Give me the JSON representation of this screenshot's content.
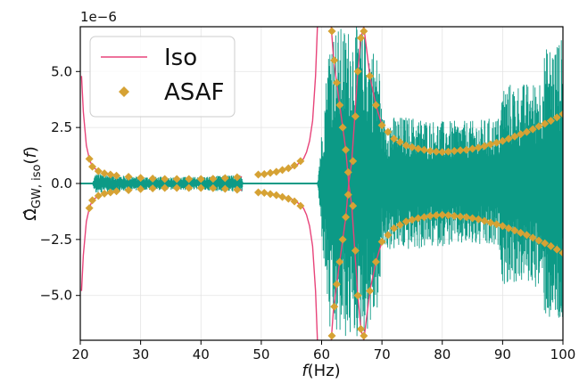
{
  "chart_data": {
    "type": "line",
    "xlabel": "f(Hz)",
    "ylabel": "Ω̂GW,iso(f)",
    "y_scale_label": "1e−6",
    "xlim": [
      20,
      100
    ],
    "ylim": [
      -7.0,
      7.0
    ],
    "x_ticks": [
      20,
      30,
      40,
      50,
      60,
      70,
      80,
      90,
      100
    ],
    "y_ticks": [
      -5.0,
      -2.5,
      0.0,
      2.5,
      5.0
    ],
    "y_tick_labels": [
      "−5.0",
      "−2.5",
      "0.0",
      "2.5",
      "5.0"
    ],
    "grid": true,
    "legend_position": "top-left",
    "colors": {
      "teal": "#0c9a86",
      "pink": "#e8447a",
      "gold": "#d6a234"
    },
    "series": [
      {
        "name": "Iso",
        "style": "line",
        "color": "#e8447a",
        "upper": {
          "x": [
            20.2,
            20.5,
            21,
            21.5,
            22,
            23,
            25,
            28,
            30,
            33,
            36,
            40,
            43,
            46,
            46.8,
            49.5,
            51,
            53,
            55,
            56,
            57,
            57.5,
            58,
            58.5,
            59,
            59.3,
            61.6,
            62,
            62.5,
            63,
            63.5,
            64,
            64.5,
            65,
            65.5,
            66,
            66.5,
            67,
            68,
            69,
            70,
            72,
            74,
            76,
            78,
            80,
            82,
            84,
            86,
            88,
            90,
            92,
            94,
            96,
            98,
            100
          ],
          "y": [
            4.8,
            3.2,
            1.7,
            1.1,
            0.75,
            0.55,
            0.4,
            0.3,
            0.25,
            0.2,
            0.2,
            0.2,
            0.22,
            0.28,
            0.3,
            0.4,
            0.45,
            0.55,
            0.7,
            0.85,
            1.1,
            1.4,
            1.9,
            2.8,
            4.8,
            7.0,
            -7.0,
            -5.5,
            -4.5,
            -3.5,
            -2.5,
            -1.5,
            0.0,
            1.0,
            3.0,
            5.0,
            6.5,
            7.0,
            4.8,
            3.5,
            2.6,
            2.0,
            1.7,
            1.55,
            1.45,
            1.4,
            1.45,
            1.5,
            1.6,
            1.75,
            1.9,
            2.1,
            2.3,
            2.55,
            2.8,
            3.1
          ]
        },
        "lower": {
          "x": [
            20.2,
            20.5,
            21,
            21.5,
            22,
            23,
            25,
            28,
            30,
            33,
            36,
            40,
            43,
            46,
            46.8,
            49.5,
            51,
            53,
            55,
            56,
            57,
            57.5,
            58,
            58.5,
            59,
            59.3,
            61.6,
            62,
            62.5,
            63,
            63.5,
            64,
            64.5,
            65,
            65.5,
            66,
            66.5,
            67,
            68,
            69,
            70,
            72,
            74,
            76,
            78,
            80,
            82,
            84,
            86,
            88,
            90,
            92,
            94,
            96,
            98,
            100
          ],
          "y": [
            -4.8,
            -3.2,
            -1.7,
            -1.1,
            -0.75,
            -0.55,
            -0.4,
            -0.3,
            -0.25,
            -0.2,
            -0.2,
            -0.2,
            -0.22,
            -0.28,
            -0.3,
            -0.4,
            -0.45,
            -0.55,
            -0.7,
            -0.85,
            -1.1,
            -1.4,
            -1.9,
            -2.8,
            -4.8,
            -7.0,
            7.0,
            5.5,
            4.5,
            3.5,
            2.5,
            1.5,
            0.0,
            -1.0,
            -3.0,
            -5.0,
            -6.5,
            -7.0,
            -4.8,
            -3.5,
            -2.6,
            -2.0,
            -1.7,
            -1.55,
            -1.45,
            -1.4,
            -1.45,
            -1.5,
            -1.6,
            -1.75,
            -1.9,
            -2.1,
            -2.3,
            -2.55,
            -2.8,
            -3.1
          ]
        }
      },
      {
        "name": "ASAF",
        "style": "markers",
        "color": "#d6a234",
        "upper": {
          "x": [
            21.5,
            22,
            23,
            24,
            25,
            26,
            28,
            30,
            32,
            34,
            36,
            38,
            40,
            42,
            44,
            46,
            49.5,
            50.5,
            51.5,
            52.5,
            53.5,
            54.5,
            55.5,
            56.5,
            61.7,
            62.1,
            62.5,
            63.0,
            63.5,
            64.0,
            64.4,
            65.2,
            65.6,
            66.0,
            66.5,
            67,
            68,
            69,
            70,
            71,
            72,
            73,
            74,
            75,
            76,
            77,
            78,
            79,
            80,
            81,
            82,
            83,
            84,
            85,
            86,
            87,
            88,
            89,
            90,
            91,
            92,
            93,
            94,
            95,
            96,
            97,
            98,
            99,
            100
          ],
          "y": [
            1.1,
            0.75,
            0.55,
            0.45,
            0.4,
            0.35,
            0.3,
            0.25,
            0.22,
            0.2,
            0.2,
            0.2,
            0.2,
            0.21,
            0.24,
            0.28,
            0.4,
            0.42,
            0.47,
            0.52,
            0.6,
            0.68,
            0.8,
            1.0,
            -6.8,
            -5.5,
            -4.5,
            -3.5,
            -2.5,
            -1.5,
            -0.5,
            1.0,
            3.0,
            5.0,
            6.5,
            6.8,
            4.8,
            3.5,
            2.6,
            2.3,
            2.0,
            1.85,
            1.7,
            1.62,
            1.55,
            1.5,
            1.45,
            1.42,
            1.4,
            1.42,
            1.45,
            1.48,
            1.5,
            1.55,
            1.6,
            1.67,
            1.75,
            1.82,
            1.9,
            2.0,
            2.1,
            2.2,
            2.3,
            2.42,
            2.55,
            2.67,
            2.8,
            2.95,
            3.1
          ]
        },
        "lower": {
          "x": [
            21.5,
            22,
            23,
            24,
            25,
            26,
            28,
            30,
            32,
            34,
            36,
            38,
            40,
            42,
            44,
            46,
            49.5,
            50.5,
            51.5,
            52.5,
            53.5,
            54.5,
            55.5,
            56.5,
            61.7,
            62.1,
            62.5,
            63.0,
            63.5,
            64.0,
            64.4,
            65.2,
            65.6,
            66.0,
            66.5,
            67,
            68,
            69,
            70,
            71,
            72,
            73,
            74,
            75,
            76,
            77,
            78,
            79,
            80,
            81,
            82,
            83,
            84,
            85,
            86,
            87,
            88,
            89,
            90,
            91,
            92,
            93,
            94,
            95,
            96,
            97,
            98,
            99,
            100
          ],
          "y": [
            -1.1,
            -0.75,
            -0.55,
            -0.45,
            -0.4,
            -0.35,
            -0.3,
            -0.25,
            -0.22,
            -0.2,
            -0.2,
            -0.2,
            -0.2,
            -0.21,
            -0.24,
            -0.28,
            -0.4,
            -0.42,
            -0.47,
            -0.52,
            -0.6,
            -0.68,
            -0.8,
            -1.0,
            6.8,
            5.5,
            4.5,
            3.5,
            2.5,
            1.5,
            0.5,
            -1.0,
            -3.0,
            -5.0,
            -6.5,
            -6.8,
            -4.8,
            -3.5,
            -2.6,
            -2.3,
            -2.0,
            -1.85,
            -1.7,
            -1.62,
            -1.55,
            -1.5,
            -1.45,
            -1.42,
            -1.4,
            -1.42,
            -1.45,
            -1.48,
            -1.5,
            -1.55,
            -1.6,
            -1.67,
            -1.75,
            -1.82,
            -1.9,
            -2.0,
            -2.1,
            -2.2,
            -2.3,
            -2.42,
            -2.55,
            -2.67,
            -2.8,
            -2.95,
            -3.1
          ]
        }
      },
      {
        "style": "noise-band",
        "color": "#0c9a86",
        "x": [
          20,
          22,
          22.5,
          30,
          40,
          46.8,
          47,
          49.5,
          57,
          59.3,
          61.4,
          62,
          64,
          66,
          68,
          69.6,
          70,
          75,
          80,
          85,
          89.5,
          90,
          95,
          96.5,
          97,
          99,
          100
        ],
        "amplitude": [
          0.0,
          0.0,
          0.45,
          0.3,
          0.3,
          0.4,
          0.0,
          0.0,
          0.0,
          0.0,
          7.0,
          7.0,
          7.0,
          7.0,
          6.5,
          5.5,
          3.0,
          3.0,
          2.8,
          2.8,
          3.0,
          4.5,
          4.5,
          5.0,
          6.0,
          6.5,
          6.5
        ]
      }
    ]
  }
}
